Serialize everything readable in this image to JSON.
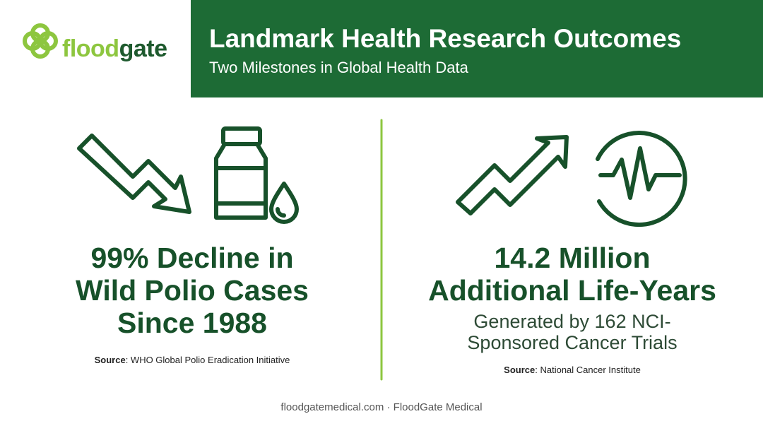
{
  "brand": {
    "part1": "flood",
    "part2": "gate"
  },
  "header": {
    "title": "Landmark Health Research Outcomes",
    "subtitle": "Two Milestones in Global Health Data"
  },
  "left": {
    "headline": [
      "99% Decline in",
      "Wild Polio Cases",
      "Since 1988"
    ],
    "source_label": "Source",
    "source_text": ": WHO Global Polio Eradication Initiative"
  },
  "right": {
    "headline": [
      "14.2 Million",
      "Additional Life-Years"
    ],
    "subtext": [
      "Generated by 162 NCI-",
      "Sponsored Cancer Trials"
    ],
    "source_label": "Source",
    "source_text": ": National Cancer Institute"
  },
  "footer": "floodgatemedical.com · FloodGate Medical"
}
